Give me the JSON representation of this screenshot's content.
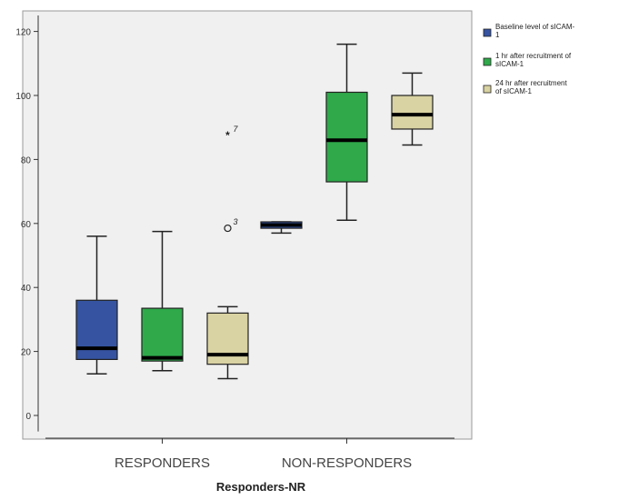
{
  "chart_data": {
    "type": "boxplot",
    "xlabel": "Responders-NR",
    "ylabel": "",
    "ylim": [
      -5,
      125
    ],
    "yticks": [
      0,
      20,
      40,
      60,
      80,
      100,
      120
    ],
    "grid": false,
    "legend_position": "right",
    "categories": [
      "RESPONDERS",
      "NON-RESPONDERS"
    ],
    "series": [
      {
        "name": "Baseline level of sICAM-1",
        "color": "#3553a0",
        "boxes": [
          {
            "category": "RESPONDERS",
            "min": 13,
            "q1": 17.5,
            "median": 21,
            "q3": 36,
            "max": 56
          },
          {
            "category": "NON-RESPONDERS",
            "min": 57,
            "q1": 58.5,
            "median": 59.5,
            "q3": 60.5,
            "max": 60.5
          }
        ]
      },
      {
        "name": "1 hr after recruitment of sICAM-1",
        "color": "#2fa94a",
        "boxes": [
          {
            "category": "RESPONDERS",
            "min": 14,
            "q1": 17,
            "median": 18,
            "q3": 33.5,
            "max": 57.5
          },
          {
            "category": "NON-RESPONDERS",
            "min": 61,
            "q1": 73,
            "median": 86,
            "q3": 101,
            "max": 116
          }
        ]
      },
      {
        "name": "24 hr after recruitment of sICAM-1",
        "color": "#d9d2a2",
        "boxes": [
          {
            "category": "RESPONDERS",
            "min": 11.5,
            "q1": 16,
            "median": 19,
            "q3": 32,
            "max": 34,
            "outliers": [
              {
                "value": 58.5,
                "label": "3",
                "marker": "circle"
              },
              {
                "value": 87.5,
                "label": "7",
                "marker": "star"
              }
            ]
          },
          {
            "category": "NON-RESPONDERS",
            "min": 84.5,
            "q1": 89.5,
            "median": 94,
            "q3": 100,
            "max": 107
          }
        ]
      }
    ]
  }
}
